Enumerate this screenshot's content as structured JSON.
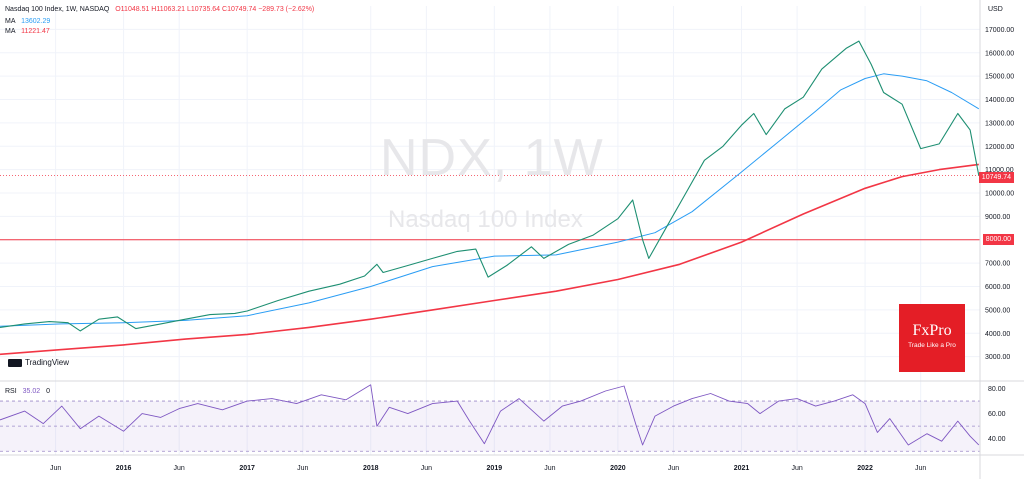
{
  "header": {
    "symbol_line": "Nasdaq 100 Index, 1W, NASDAQ",
    "ohlc": "O11048.51  H11063.21  L10735.64  C10749.74  −289.73 (−2.62%)",
    "ma1_label": "MA",
    "ma1_value": "13602.29",
    "ma1_color": "#2a9df4",
    "ma2_label": "MA",
    "ma2_value": "11221.47",
    "ma2_color": "#f23645",
    "change_color": "#f23645"
  },
  "watermark": {
    "title": "NDX, 1W",
    "subtitle": "Nasdaq 100 Index"
  },
  "branding": {
    "tradingview": "TradingView",
    "fxpro_brand": "FxPro",
    "fxpro_tagline": "Trade Like a Pro"
  },
  "currency": "USD",
  "last_price_tag": "10749.74",
  "level_tag": "8000.00",
  "rsi": {
    "label": "RSI",
    "value": "35.02",
    "extra": "0"
  },
  "chart_data": [
    {
      "type": "line",
      "title": "Nasdaq 100 Index, 1W, NASDAQ",
      "ylabel": "USD",
      "ylim": [
        2000,
        18000
      ],
      "yticks": [
        3000,
        4000,
        5000,
        6000,
        7000,
        8000,
        9000,
        10000,
        11000,
        12000,
        13000,
        14000,
        15000,
        16000,
        17000
      ],
      "ytick_labels": [
        "3000.00",
        "4000.00",
        "5000.00",
        "6000.00",
        "7000.00",
        "8000.00",
        "9000.00",
        "10000.00",
        "11000.00",
        "12000.00",
        "13000.00",
        "14000.00",
        "15000.00",
        "16000.00",
        "17000.00"
      ],
      "x_labels": [
        "Jun",
        "2016",
        "Jun",
        "2017",
        "Jun",
        "2018",
        "Jun",
        "2019",
        "Jun",
        "2020",
        "Jun",
        "2021",
        "Jun",
        "2022",
        "Jun"
      ],
      "x_label_years": [
        2015.45,
        2016.0,
        2016.45,
        2017.0,
        2017.45,
        2018.0,
        2018.45,
        2019.0,
        2019.45,
        2020.0,
        2020.45,
        2021.0,
        2021.45,
        2022.0,
        2022.45
      ],
      "xlim": [
        2015.0,
        2022.93
      ],
      "price": {
        "x": [
          2015.0,
          2015.2,
          2015.4,
          2015.55,
          2015.65,
          2015.8,
          2015.95,
          2016.1,
          2016.3,
          2016.5,
          2016.7,
          2016.9,
          2017.0,
          2017.25,
          2017.5,
          2017.75,
          2017.95,
          2018.05,
          2018.1,
          2018.3,
          2018.5,
          2018.7,
          2018.85,
          2018.95,
          2019.1,
          2019.3,
          2019.4,
          2019.6,
          2019.8,
          2020.0,
          2020.12,
          2020.2,
          2020.25,
          2020.4,
          2020.55,
          2020.7,
          2020.85,
          2021.0,
          2021.1,
          2021.2,
          2021.35,
          2021.5,
          2021.65,
          2021.85,
          2021.95,
          2022.05,
          2022.15,
          2022.3,
          2022.45,
          2022.6,
          2022.75,
          2022.85,
          2022.92
        ],
        "y": [
          4250,
          4400,
          4500,
          4450,
          4100,
          4600,
          4700,
          4200,
          4400,
          4600,
          4800,
          4850,
          4950,
          5400,
          5800,
          6100,
          6450,
          6950,
          6600,
          6900,
          7200,
          7500,
          7600,
          6400,
          6900,
          7700,
          7200,
          7800,
          8200,
          8900,
          9700,
          8000,
          7200,
          8600,
          10000,
          11400,
          12000,
          12900,
          13400,
          12500,
          13600,
          14100,
          15300,
          16200,
          16500,
          15500,
          14300,
          13800,
          11900,
          12100,
          13400,
          12700,
          10749.74
        ]
      },
      "ma_fast": {
        "name": "MA 13602.29",
        "x": [
          2015.0,
          2015.5,
          2016.0,
          2016.5,
          2017.0,
          2017.5,
          2018.0,
          2018.5,
          2019.0,
          2019.5,
          2020.0,
          2020.3,
          2020.6,
          2021.0,
          2021.3,
          2021.6,
          2021.8,
          2022.0,
          2022.15,
          2022.3,
          2022.5,
          2022.7,
          2022.92
        ],
        "y": [
          4300,
          4400,
          4450,
          4550,
          4750,
          5300,
          6000,
          6850,
          7300,
          7350,
          7900,
          8300,
          9200,
          10900,
          12200,
          13500,
          14400,
          14900,
          15100,
          15000,
          14800,
          14300,
          13602.29
        ]
      },
      "ma_slow": {
        "name": "MA 11221.47",
        "x": [
          2015.0,
          2015.5,
          2016.0,
          2016.5,
          2017.0,
          2017.5,
          2018.0,
          2018.5,
          2019.0,
          2019.5,
          2020.0,
          2020.5,
          2021.0,
          2021.5,
          2022.0,
          2022.3,
          2022.6,
          2022.92
        ],
        "y": [
          3100,
          3300,
          3500,
          3750,
          3950,
          4250,
          4600,
          5000,
          5400,
          5800,
          6300,
          6950,
          7900,
          9100,
          10200,
          10700,
          11000,
          11221.47
        ]
      },
      "horizontal_level": 8000,
      "last_price": 10749.74
    },
    {
      "type": "line",
      "title": "RSI 35.02 0",
      "ylim": [
        27,
        86
      ],
      "yticks": [
        40,
        60,
        80
      ],
      "ytick_labels": [
        "40.00",
        "60.00",
        "80.00"
      ],
      "bands": [
        30,
        50,
        70
      ],
      "x": [
        2015.0,
        2015.2,
        2015.35,
        2015.5,
        2015.65,
        2015.8,
        2016.0,
        2016.15,
        2016.3,
        2016.45,
        2016.6,
        2016.8,
        2017.0,
        2017.2,
        2017.4,
        2017.6,
        2017.8,
        2018.0,
        2018.05,
        2018.15,
        2018.3,
        2018.5,
        2018.7,
        2018.8,
        2018.92,
        2019.05,
        2019.2,
        2019.4,
        2019.55,
        2019.7,
        2019.9,
        2020.05,
        2020.15,
        2020.2,
        2020.3,
        2020.45,
        2020.6,
        2020.75,
        2020.9,
        2021.05,
        2021.15,
        2021.3,
        2021.45,
        2021.6,
        2021.75,
        2021.9,
        2022.0,
        2022.1,
        2022.2,
        2022.35,
        2022.5,
        2022.62,
        2022.75,
        2022.85,
        2022.92
      ],
      "y": [
        55,
        62,
        52,
        66,
        48,
        58,
        46,
        60,
        57,
        64,
        68,
        63,
        70,
        72,
        68,
        75,
        71,
        83,
        50,
        65,
        60,
        68,
        70,
        54,
        36,
        62,
        72,
        54,
        66,
        70,
        78,
        82,
        50,
        35,
        58,
        66,
        72,
        76,
        70,
        68,
        60,
        70,
        72,
        66,
        70,
        75,
        68,
        45,
        56,
        35,
        44,
        38,
        54,
        42,
        35.02
      ]
    }
  ]
}
